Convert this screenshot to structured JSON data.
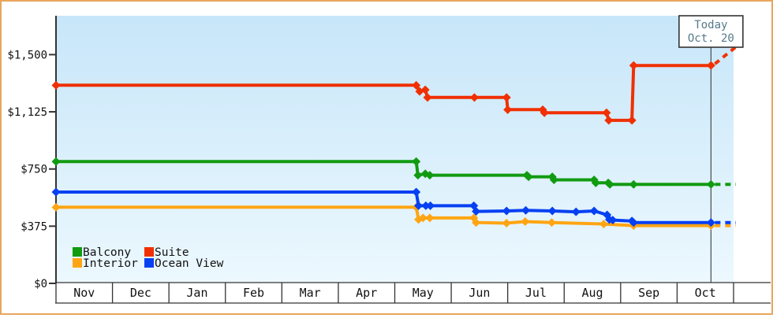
{
  "window": {
    "border_color": "#e9a65b",
    "background": "#ffffff",
    "plot_bg_top": "#c7e6f9",
    "plot_bg_bottom": "#ecf8fe",
    "axis_color": "#333333",
    "text_color": "#111111"
  },
  "today_box": {
    "line1": "Today",
    "line2": "Oct. 20",
    "text_color": "#567a8b",
    "border_color": "#333333"
  },
  "legend": {
    "items": [
      {
        "label": "Balcony",
        "color": "#119b11"
      },
      {
        "label": "Suite",
        "color": "#f03000"
      },
      {
        "label": "Interior",
        "color": "#ffa513"
      },
      {
        "label": "Ocean View",
        "color": "#0540f2"
      }
    ]
  },
  "chart_data": {
    "type": "line",
    "title": "",
    "xlabel": "",
    "ylabel": "",
    "x_unit": "month_index_from_Nov_0_to_12",
    "months": [
      "Nov",
      "Dec",
      "Jan",
      "Feb",
      "Mar",
      "Apr",
      "May",
      "Jun",
      "Jul",
      "Aug",
      "Sep",
      "Oct"
    ],
    "yticks": [
      {
        "value": 1500,
        "label": "$1,500"
      },
      {
        "value": 1125,
        "label": "$1,125"
      },
      {
        "value": 750,
        "label": "$750"
      },
      {
        "value": 375,
        "label": "$375"
      },
      {
        "value": 0,
        "label": "$0"
      }
    ],
    "ylim": [
      0,
      1755
    ],
    "grid": false,
    "legend_position": "bottom-left",
    "today": {
      "month_index": 11.6,
      "label": "Oct. 20"
    },
    "series": [
      {
        "name": "Balcony",
        "color": "#119b11",
        "points": [
          [
            0,
            799
          ],
          [
            6.38,
            799
          ],
          [
            6.41,
            709
          ],
          [
            6.54,
            719
          ],
          [
            6.62,
            709
          ],
          [
            8.34,
            709
          ],
          [
            8.37,
            699
          ],
          [
            8.79,
            699
          ],
          [
            8.82,
            679
          ],
          [
            9.53,
            679
          ],
          [
            9.56,
            659
          ],
          [
            9.78,
            659
          ],
          [
            9.81,
            649
          ],
          [
            10.23,
            649
          ],
          [
            11.6,
            649
          ]
        ],
        "projection": [
          [
            11.67,
            649
          ],
          [
            12.04,
            649
          ]
        ]
      },
      {
        "name": "Suite",
        "color": "#f03000",
        "points": [
          [
            0,
            1299
          ],
          [
            6.38,
            1299
          ],
          [
            6.44,
            1259
          ],
          [
            6.54,
            1269
          ],
          [
            6.58,
            1219
          ],
          [
            7.41,
            1219
          ],
          [
            7.98,
            1219
          ],
          [
            8.0,
            1139
          ],
          [
            8.62,
            1139
          ],
          [
            8.65,
            1119
          ],
          [
            9.75,
            1119
          ],
          [
            9.79,
            1069
          ],
          [
            10.2,
            1069
          ],
          [
            10.23,
            1429
          ],
          [
            11.6,
            1429
          ]
        ],
        "projection": [
          [
            11.67,
            1440
          ],
          [
            12.04,
            1550
          ]
        ]
      },
      {
        "name": "Interior",
        "color": "#ffa513",
        "points": [
          [
            0,
            499
          ],
          [
            6.38,
            499
          ],
          [
            6.42,
            419
          ],
          [
            6.5,
            429
          ],
          [
            6.62,
            429
          ],
          [
            7.4,
            429
          ],
          [
            7.44,
            399
          ],
          [
            7.98,
            395
          ],
          [
            8.31,
            405
          ],
          [
            8.78,
            399
          ],
          [
            9.7,
            389
          ],
          [
            10.23,
            379
          ],
          [
            11.6,
            379
          ]
        ],
        "projection": [
          [
            11.67,
            379
          ],
          [
            12.04,
            379
          ]
        ]
      },
      {
        "name": "Ocean View",
        "color": "#0540f2",
        "points": [
          [
            0,
            599
          ],
          [
            6.38,
            599
          ],
          [
            6.42,
            509
          ],
          [
            6.55,
            509
          ],
          [
            6.63,
            509
          ],
          [
            7.4,
            509
          ],
          [
            7.44,
            472
          ],
          [
            7.98,
            475
          ],
          [
            8.32,
            479
          ],
          [
            8.79,
            475
          ],
          [
            9.21,
            469
          ],
          [
            9.53,
            475
          ],
          [
            9.76,
            449
          ],
          [
            9.8,
            419
          ],
          [
            9.86,
            415
          ],
          [
            10.2,
            409
          ],
          [
            10.23,
            399
          ],
          [
            11.6,
            399
          ]
        ],
        "projection": [
          [
            11.67,
            399
          ],
          [
            12.04,
            399
          ]
        ]
      }
    ]
  }
}
